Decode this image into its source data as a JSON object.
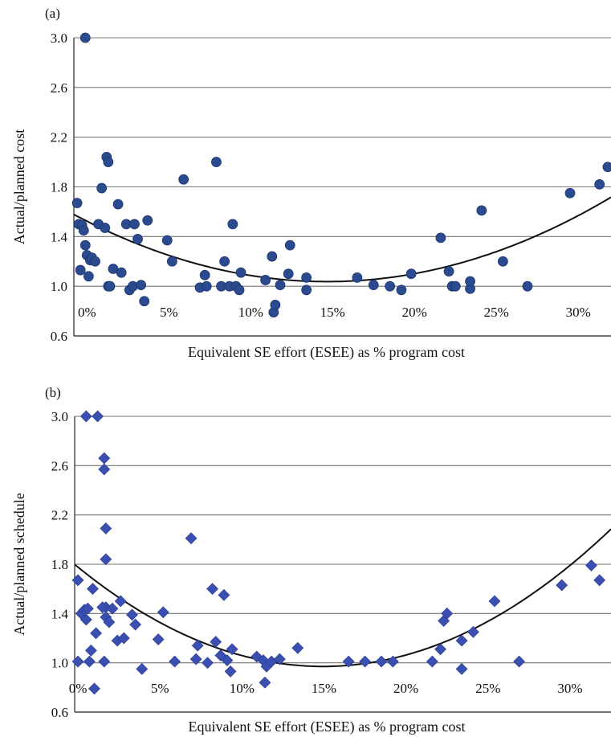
{
  "chart_data": [
    {
      "panel_label": "(a)",
      "type": "scatter",
      "marker": "circle",
      "xlabel": "Equivalent SE effort (ESEE) as % program cost",
      "ylabel": "Actual/planned cost",
      "xlim": [
        -0.8,
        32
      ],
      "ylim": [
        0.6,
        3.0
      ],
      "x_ticks": [
        0,
        5,
        10,
        15,
        20,
        25,
        30
      ],
      "x_tick_labels": [
        "0%",
        "5%",
        "10%",
        "15%",
        "20%",
        "25%",
        "30%"
      ],
      "y_ticks": [
        0.6,
        1.0,
        1.4,
        1.8,
        2.2,
        2.6,
        3.0
      ],
      "y_tick_labels": [
        "0.6",
        "1.0",
        "1.4",
        "1.8",
        "2.2",
        "2.6",
        "3.0"
      ],
      "grid": "horizontal",
      "colors": {
        "marker": "#2b4b8f",
        "curve": "#111111",
        "grid": "#777777"
      },
      "points": {
        "x": [
          -0.1,
          -0.6,
          -0.5,
          -0.4,
          -0.3,
          -0.2,
          -0.1,
          0.0,
          0.1,
          0.2,
          0.3,
          0.5,
          0.7,
          0.9,
          1.1,
          1.2,
          1.3,
          1.3,
          1.4,
          1.4,
          1.6,
          1.9,
          2.1,
          2.4,
          2.6,
          2.8,
          2.9,
          3.1,
          3.3,
          3.5,
          3.7,
          4.9,
          5.2,
          5.9,
          6.9,
          7.2,
          7.3,
          7.9,
          8.2,
          8.4,
          8.7,
          8.9,
          9.1,
          9.3,
          9.4,
          10.9,
          11.3,
          11.4,
          11.5,
          11.8,
          12.3,
          12.4,
          13.4,
          13.4,
          16.5,
          17.5,
          18.5,
          19.2,
          19.8,
          21.6,
          22.1,
          22.3,
          22.5,
          23.4,
          23.4,
          24.1,
          25.4,
          26.9,
          29.5,
          31.3,
          31.8
        ],
        "y": [
          3.0,
          1.67,
          1.5,
          1.13,
          1.49,
          1.45,
          1.33,
          1.25,
          1.08,
          1.21,
          1.23,
          1.2,
          1.5,
          1.79,
          1.47,
          2.04,
          2.0,
          1.0,
          1.0,
          1.0,
          1.14,
          1.66,
          1.11,
          1.5,
          0.97,
          1.0,
          1.5,
          1.38,
          1.01,
          0.88,
          1.53,
          1.37,
          1.2,
          1.86,
          0.99,
          1.09,
          1.0,
          2.0,
          1.0,
          1.2,
          1.0,
          1.5,
          1.0,
          0.97,
          1.11,
          1.05,
          1.24,
          0.79,
          0.85,
          1.01,
          1.1,
          1.33,
          0.97,
          1.07,
          1.07,
          1.01,
          1.0,
          0.97,
          1.1,
          1.39,
          1.12,
          1.0,
          1.0,
          0.98,
          1.04,
          1.61,
          1.2,
          1.0,
          1.75,
          1.82,
          1.96
        ]
      },
      "trendline": {
        "type": "quadratic",
        "coefficients": [
          1.5236,
          -0.0663,
          0.00226
        ]
      }
    },
    {
      "panel_label": "(b)",
      "type": "scatter",
      "marker": "diamond",
      "xlabel": "Equivalent SE effort (ESEE) as % program cost",
      "ylabel": "Actual/planned schedule",
      "xlim": [
        -0.2,
        32.5
      ],
      "ylim": [
        0.6,
        3.0
      ],
      "x_ticks": [
        0,
        5,
        10,
        15,
        20,
        25,
        30
      ],
      "x_tick_labels": [
        "0%",
        "5%",
        "10%",
        "15%",
        "20%",
        "25%",
        "30%"
      ],
      "y_ticks": [
        0.6,
        1.0,
        1.4,
        1.8,
        2.2,
        2.6,
        3.0
      ],
      "y_tick_labels": [
        "0.6",
        "1.0",
        "1.4",
        "1.8",
        "2.2",
        "2.6",
        "3.0"
      ],
      "grid": "horizontal",
      "colors": {
        "marker": "#3a4fb0",
        "curve": "#111111",
        "grid": "#777777"
      },
      "points": {
        "x": [
          0.5,
          0.9,
          1.2,
          1.6,
          1.6,
          1.7,
          1.7,
          1.7,
          0.0,
          0.2,
          0.4,
          0.5,
          0.6,
          0.8,
          1.1,
          1.5,
          1.7,
          1.9,
          2.1,
          2.4,
          2.6,
          2.8,
          3.3,
          3.5,
          3.9,
          0.0,
          0.7,
          1.0,
          1.6,
          4.9,
          5.2,
          5.9,
          6.9,
          7.2,
          7.3,
          7.9,
          8.2,
          8.4,
          8.7,
          8.9,
          9.1,
          9.3,
          9.4,
          10.9,
          11.3,
          11.4,
          11.5,
          11.8,
          12.3,
          13.4,
          16.5,
          17.5,
          18.5,
          19.2,
          21.6,
          22.1,
          22.3,
          22.5,
          23.4,
          23.4,
          24.1,
          25.4,
          26.9,
          29.5,
          31.3,
          31.8
        ],
        "y": [
          3.0,
          1.6,
          3.0,
          2.66,
          2.57,
          2.09,
          1.84,
          1.45,
          1.67,
          1.4,
          1.43,
          1.35,
          1.44,
          1.1,
          1.24,
          1.45,
          1.37,
          1.33,
          1.44,
          1.18,
          1.5,
          1.2,
          1.39,
          1.31,
          0.95,
          1.01,
          1.01,
          0.79,
          1.01,
          1.19,
          1.41,
          1.01,
          2.01,
          1.03,
          1.14,
          1.0,
          1.6,
          1.17,
          1.06,
          1.55,
          1.02,
          0.93,
          1.11,
          1.05,
          1.02,
          0.84,
          0.97,
          1.01,
          1.03,
          1.12,
          1.01,
          1.01,
          1.01,
          1.01,
          1.01,
          1.11,
          1.34,
          1.4,
          1.18,
          0.95,
          1.25,
          1.5,
          1.01,
          1.63,
          1.79,
          1.67
        ]
      },
      "trendline": {
        "type": "quadratic",
        "coefficients": [
          1.7763,
          -0.1079,
          0.003612
        ]
      }
    }
  ]
}
